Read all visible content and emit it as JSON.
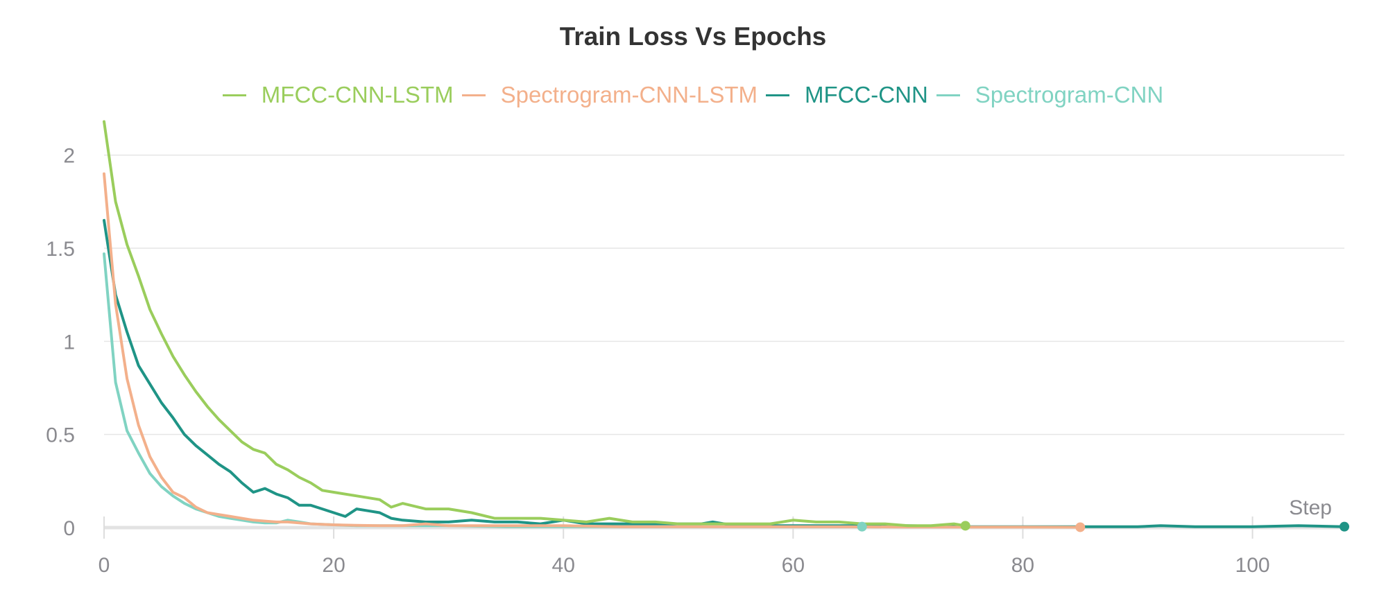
{
  "chart_data": {
    "type": "line",
    "title": "Train Loss Vs Epochs",
    "xlabel": "Step",
    "ylabel": "",
    "xlim": [
      0,
      108
    ],
    "ylim": [
      0,
      2.2
    ],
    "x_ticks": [
      0,
      20,
      40,
      60,
      80,
      100
    ],
    "y_ticks": [
      0,
      0.5,
      1,
      1.5,
      2
    ],
    "y_tick_labels": [
      "0",
      "0.5",
      "1",
      "1.5",
      "2"
    ],
    "grid": true,
    "legend_position": "top",
    "series": [
      {
        "name": "MFCC-CNN-LSTM",
        "color": "#9acd5c",
        "end_marker": true,
        "x": [
          0,
          1,
          2,
          3,
          4,
          5,
          6,
          7,
          8,
          9,
          10,
          11,
          12,
          13,
          14,
          15,
          16,
          17,
          18,
          19,
          20,
          22,
          24,
          25,
          26,
          28,
          30,
          32,
          34,
          36,
          38,
          40,
          42,
          44,
          46,
          48,
          50,
          52,
          54,
          56,
          58,
          60,
          62,
          64,
          66,
          68,
          70,
          72,
          74,
          75
        ],
        "y": [
          2.18,
          1.75,
          1.52,
          1.35,
          1.17,
          1.04,
          0.92,
          0.82,
          0.73,
          0.65,
          0.58,
          0.52,
          0.46,
          0.42,
          0.4,
          0.34,
          0.31,
          0.27,
          0.24,
          0.2,
          0.19,
          0.17,
          0.15,
          0.11,
          0.13,
          0.1,
          0.1,
          0.08,
          0.05,
          0.05,
          0.05,
          0.04,
          0.03,
          0.05,
          0.03,
          0.03,
          0.02,
          0.02,
          0.02,
          0.02,
          0.02,
          0.04,
          0.03,
          0.03,
          0.02,
          0.02,
          0.01,
          0.01,
          0.02,
          0.01
        ]
      },
      {
        "name": "Spectrogram-CNN-LSTM",
        "color": "#f3b08b",
        "end_marker": true,
        "x": [
          0,
          1,
          2,
          3,
          4,
          5,
          6,
          7,
          8,
          9,
          10,
          11,
          12,
          13,
          14,
          15,
          16,
          18,
          20,
          22,
          24,
          26,
          28,
          30,
          35,
          40,
          45,
          50,
          55,
          60,
          65,
          70,
          75,
          80,
          85
        ],
        "y": [
          1.9,
          1.2,
          0.8,
          0.55,
          0.38,
          0.27,
          0.19,
          0.16,
          0.11,
          0.08,
          0.07,
          0.06,
          0.05,
          0.04,
          0.035,
          0.03,
          0.03,
          0.02,
          0.015,
          0.012,
          0.01,
          0.01,
          0.02,
          0.01,
          0.01,
          0.01,
          0.005,
          0.005,
          0.005,
          0.005,
          0.004,
          0.003,
          0.003,
          0.003,
          0.002
        ]
      },
      {
        "name": "MFCC-CNN",
        "color": "#1f9486",
        "end_marker": true,
        "x": [
          0,
          1,
          2,
          3,
          4,
          5,
          6,
          7,
          8,
          9,
          10,
          11,
          12,
          13,
          14,
          15,
          16,
          17,
          18,
          19,
          20,
          21,
          22,
          23,
          24,
          25,
          26,
          28,
          30,
          32,
          34,
          36,
          38,
          40,
          42,
          44,
          46,
          48,
          50,
          52,
          53,
          55,
          60,
          65,
          70,
          75,
          80,
          85,
          90,
          92,
          95,
          100,
          104,
          108
        ],
        "y": [
          1.65,
          1.25,
          1.05,
          0.87,
          0.77,
          0.67,
          0.59,
          0.5,
          0.44,
          0.39,
          0.34,
          0.3,
          0.24,
          0.19,
          0.21,
          0.18,
          0.16,
          0.12,
          0.12,
          0.1,
          0.08,
          0.06,
          0.1,
          0.09,
          0.08,
          0.05,
          0.04,
          0.03,
          0.03,
          0.04,
          0.03,
          0.03,
          0.02,
          0.04,
          0.02,
          0.02,
          0.02,
          0.02,
          0.02,
          0.02,
          0.03,
          0.01,
          0.01,
          0.01,
          0.01,
          0.005,
          0.005,
          0.005,
          0.005,
          0.01,
          0.005,
          0.005,
          0.01,
          0.005
        ]
      },
      {
        "name": "Spectrogram-CNN",
        "color": "#80d3c2",
        "end_marker": true,
        "x": [
          0,
          1,
          2,
          3,
          4,
          5,
          6,
          7,
          8,
          9,
          10,
          11,
          12,
          13,
          14,
          15,
          16,
          17,
          18,
          20,
          22,
          25,
          30,
          35,
          40,
          45,
          50,
          55,
          60,
          66
        ],
        "y": [
          1.47,
          0.78,
          0.52,
          0.4,
          0.29,
          0.22,
          0.17,
          0.13,
          0.1,
          0.08,
          0.06,
          0.05,
          0.04,
          0.03,
          0.025,
          0.025,
          0.04,
          0.03,
          0.02,
          0.015,
          0.01,
          0.01,
          0.01,
          0.005,
          0.005,
          0.005,
          0.005,
          0.005,
          0.005,
          0.005
        ]
      }
    ]
  }
}
